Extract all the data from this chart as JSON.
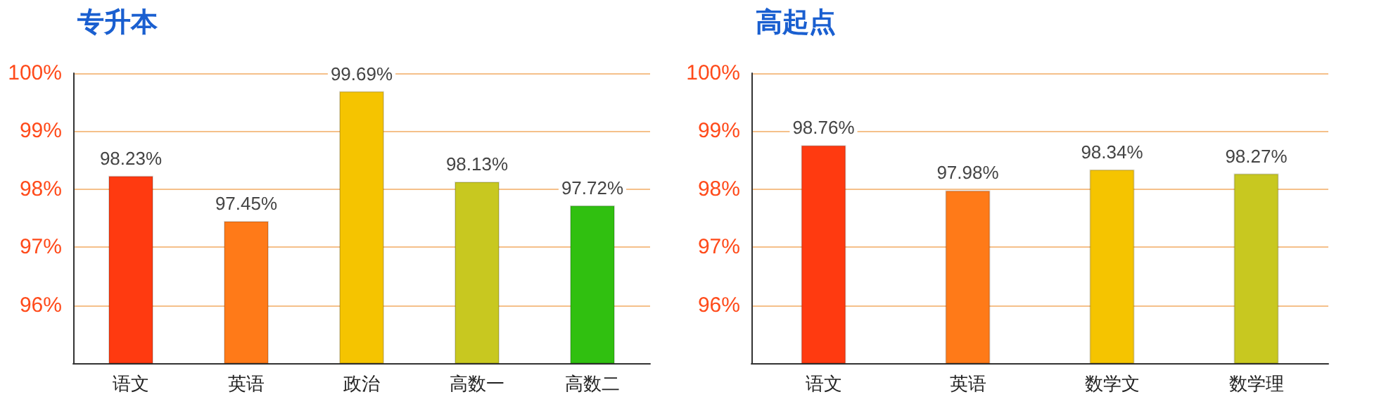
{
  "chart_data": [
    {
      "type": "bar",
      "title": "专升本",
      "categories": [
        "语文",
        "英语",
        "政治",
        "高数一",
        "高数二"
      ],
      "values": [
        98.23,
        97.45,
        99.69,
        98.13,
        97.72
      ],
      "value_labels": [
        "98.23%",
        "97.45%",
        "99.69%",
        "98.13%",
        "97.72%"
      ],
      "colors": [
        "#ff3a10",
        "#ff7a18",
        "#f5c400",
        "#c8c820",
        "#30c010"
      ],
      "ylim": [
        95,
        100
      ],
      "yticks": [
        {
          "value": 96,
          "label": "96%"
        },
        {
          "value": 97,
          "label": "97%"
        },
        {
          "value": 98,
          "label": "98%"
        },
        {
          "value": 99,
          "label": "99%"
        },
        {
          "value": 100,
          "label": "100%"
        }
      ],
      "grid": "y"
    },
    {
      "type": "bar",
      "title": "高起点",
      "categories": [
        "语文",
        "英语",
        "数学文",
        "数学理"
      ],
      "values": [
        98.76,
        97.98,
        98.34,
        98.27
      ],
      "value_labels": [
        "98.76%",
        "97.98%",
        "98.34%",
        "98.27%"
      ],
      "colors": [
        "#ff3a10",
        "#ff7a18",
        "#f5c400",
        "#c8c820"
      ],
      "ylim": [
        95,
        100
      ],
      "yticks": [
        {
          "value": 96,
          "label": "96%"
        },
        {
          "value": 97,
          "label": "97%"
        },
        {
          "value": 98,
          "label": "98%"
        },
        {
          "value": 99,
          "label": "99%"
        },
        {
          "value": 100,
          "label": "100%"
        }
      ],
      "grid": "y"
    }
  ]
}
